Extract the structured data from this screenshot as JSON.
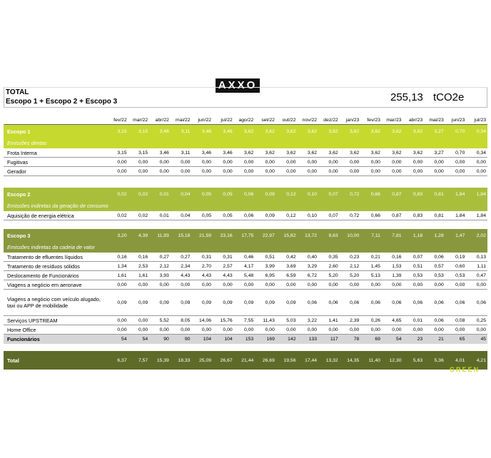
{
  "logo": "AXXO",
  "header": {
    "title": "TOTAL",
    "subtitle": "Escopo 1 + Escopo 2 + Escopo 3",
    "total": "255,13",
    "unit": "tCO2e"
  },
  "months": [
    "fev/22",
    "mar/22",
    "abr/22",
    "mai/22",
    "jun/22",
    "jul/22",
    "ago/22",
    "set/22",
    "out/22",
    "nov/22",
    "dez/22",
    "jan/23",
    "fev/23",
    "mar/23",
    "abr/23",
    "mai/23",
    "jun/23",
    "jul/23"
  ],
  "sections": [
    {
      "name": "Escopo 1",
      "values": [
        "3,15",
        "3,15",
        "3,46",
        "3,11",
        "3,46",
        "3,46",
        "3,62",
        "3,62",
        "3,62",
        "3,62",
        "3,62",
        "3,62",
        "3,62",
        "3,62",
        "3,62",
        "3,27",
        "0,70",
        "0,34"
      ],
      "description": "Emissões diretas",
      "rows": [
        {
          "label": "Frota Interna",
          "values": [
            "3,15",
            "3,15",
            "3,46",
            "3,11",
            "3,46",
            "3,46",
            "3,62",
            "3,62",
            "3,62",
            "3,62",
            "3,62",
            "3,62",
            "3,62",
            "3,62",
            "3,62",
            "3,27",
            "0,70",
            "0,34"
          ]
        },
        {
          "label": "Fugitivas",
          "values": [
            "0,00",
            "0,00",
            "0,00",
            "0,00",
            "0,00",
            "0,00",
            "0,00",
            "0,00",
            "0,00",
            "0,00",
            "0,00",
            "0,00",
            "0,00",
            "0,00",
            "0,00",
            "0,00",
            "0,00",
            "0,00"
          ]
        },
        {
          "label": "Gerador",
          "values": [
            "0,00",
            "0,00",
            "0,00",
            "0,00",
            "0,00",
            "0,00",
            "0,00",
            "0,00",
            "0,00",
            "0,00",
            "0,00",
            "0,00",
            "0,00",
            "0,00",
            "0,00",
            "0,00",
            "0,00",
            "0,00"
          ]
        }
      ]
    },
    {
      "name": "Escopo 2",
      "values": [
        "0,02",
        "0,02",
        "0,01",
        "0,04",
        "0,05",
        "0,05",
        "0,06",
        "0,09",
        "0,12",
        "0,10",
        "0,07",
        "0,72",
        "0,66",
        "0,87",
        "0,83",
        "0,81",
        "1,84",
        "1,84"
      ],
      "description": "Emissões indiretas da geração de consumo",
      "rows": [
        {
          "label": "Aquisição de energia elétrica",
          "values": [
            "0,02",
            "0,02",
            "0,01",
            "0,04",
            "0,05",
            "0,05",
            "0,06",
            "0,09",
            "0,12",
            "0,10",
            "0,07",
            "0,72",
            "0,66",
            "0,87",
            "0,83",
            "0,81",
            "1,84",
            "1,84"
          ]
        }
      ]
    },
    {
      "name": "Escopo 3",
      "values": [
        "3,20",
        "4,39",
        "11,93",
        "15,18",
        "21,59",
        "23,16",
        "17,75",
        "22,97",
        "15,82",
        "13,72",
        "9,63",
        "10,00",
        "7,11",
        "7,81",
        "1,18",
        "1,28",
        "1,47",
        "2,02"
      ],
      "description": "Emissões indiretas da cadeia de valor",
      "rows": [
        {
          "label": "Tratamento de efluentes líquidos",
          "values": [
            "0,16",
            "0,16",
            "0,27",
            "0,27",
            "0,31",
            "0,31",
            "0,46",
            "0,51",
            "0,42",
            "0,40",
            "0,35",
            "0,23",
            "0,21",
            "0,16",
            "0,07",
            "0,06",
            "0,19",
            "0,13"
          ]
        },
        {
          "label": "Tratamento de resíduos sólidos",
          "values": [
            "1,34",
            "2,53",
            "2,12",
            "2,34",
            "2,70",
            "2,57",
            "4,17",
            "3,99",
            "3,69",
            "3,29",
            "2,60",
            "2,12",
            "1,45",
            "1,53",
            "0,51",
            "0,57",
            "0,60",
            "1,11"
          ]
        },
        {
          "label": "Deslocamento de Funcionários",
          "values": [
            "1,61",
            "1,61",
            "3,93",
            "4,43",
            "4,43",
            "4,43",
            "5,48",
            "6,95",
            "6,59",
            "6,72",
            "5,20",
            "5,20",
            "5,13",
            "1,39",
            "0,53",
            "0,53",
            "0,53",
            "0,47"
          ]
        },
        {
          "label": "Viagens a negócio em aeronave",
          "values": [
            "0,00",
            "0,00",
            "0,00",
            "0,00",
            "0,00",
            "0,00",
            "0,00",
            "0,00",
            "0,00",
            "0,00",
            "0,00",
            "0,00",
            "0,00",
            "0,00",
            "0,00",
            "0,00",
            "0,00",
            "0,00"
          ]
        },
        {
          "label": "Viagens a negócio com veículo alugado, taxi ou APP de mobilidade",
          "values": [
            "0,09",
            "0,09",
            "0,09",
            "0,09",
            "0,09",
            "0,09",
            "0,09",
            "0,09",
            "0,09",
            "0,06",
            "0,06",
            "0,06",
            "0,06",
            "0,06",
            "0,06",
            "0,06",
            "0,06",
            "0,06"
          ]
        },
        {
          "label": "Serviços UPSTREAM",
          "values": [
            "0,00",
            "0,00",
            "5,52",
            "8,05",
            "14,06",
            "15,76",
            "7,55",
            "11,43",
            "5,03",
            "3,22",
            "1,41",
            "2,39",
            "0,26",
            "4,65",
            "0,01",
            "0,06",
            "0,08",
            "0,25"
          ]
        },
        {
          "label": "Home Office",
          "values": [
            "0,00",
            "0,00",
            "0,00",
            "0,00",
            "0,00",
            "0,00",
            "0,00",
            "0,00",
            "0,00",
            "0,00",
            "0,00",
            "0,00",
            "0,00",
            "0,00",
            "0,00",
            "0,00",
            "0,00",
            "0,00"
          ]
        }
      ]
    }
  ],
  "employees": {
    "label": "Funcionários",
    "values": [
      "54",
      "54",
      "90",
      "90",
      "104",
      "104",
      "153",
      "169",
      "142",
      "133",
      "117",
      "78",
      "69",
      "54",
      "23",
      "21",
      "65",
      "45"
    ]
  },
  "total": {
    "label": "Total",
    "values": [
      "6,37",
      "7,57",
      "15,39",
      "18,33",
      "25,09",
      "26,67",
      "21,44",
      "26,69",
      "19,56",
      "17,44",
      "13,32",
      "14,35",
      "11,40",
      "12,30",
      "5,63",
      "5,36",
      "4,01",
      "4,21"
    ]
  },
  "footer_logo": "GREEN"
}
